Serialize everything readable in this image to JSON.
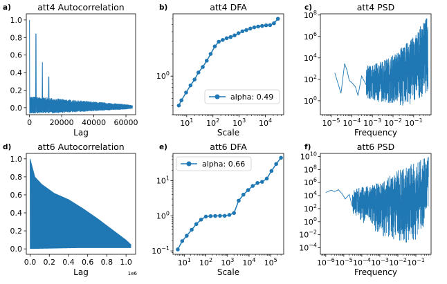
{
  "chart_data": [
    {
      "id": "a",
      "type": "line",
      "panel_letter": "a)",
      "title": "att4 Autocorrelation",
      "xlabel": "Lag",
      "ylabel": "",
      "xlim": [
        -2000,
        66000
      ],
      "ylim": [
        -0.08,
        1.07
      ],
      "xticks": [
        0,
        20000,
        40000,
        60000
      ],
      "xtick_labels": [
        "0",
        "20000",
        "40000",
        "60000"
      ],
      "yticks": [
        0.0,
        0.2,
        0.4,
        0.6,
        0.8,
        1.0
      ],
      "ytick_labels": [
        "0.0",
        "0.2",
        "0.4",
        "0.6",
        "0.8",
        "1.0"
      ],
      "series": [
        {
          "color": "#1f77b4",
          "peak_lags": [
            0,
            4000,
            8000,
            12000
          ],
          "peak_values": [
            1.0,
            0.84,
            0.52,
            0.35
          ],
          "envelope_upper": [
            [
              0,
              0.13
            ],
            [
              10000,
              0.12
            ],
            [
              20000,
              0.1
            ],
            [
              40000,
              0.07
            ],
            [
              60000,
              0.04
            ],
            [
              64000,
              0.03
            ]
          ],
          "envelope_lower": [
            [
              0,
              -0.07
            ],
            [
              20000,
              -0.06
            ],
            [
              40000,
              -0.04
            ],
            [
              60000,
              -0.02
            ],
            [
              64000,
              -0.01
            ]
          ]
        }
      ]
    },
    {
      "id": "b",
      "type": "line",
      "panel_letter": "b)",
      "title": "att4 DFA",
      "xlabel": "Scale",
      "ylabel": "",
      "xscale": "log",
      "yscale": "log",
      "xlim": [
        3,
        50000
      ],
      "ylim": [
        0.3,
        7
      ],
      "xtick_labels": [
        "10^1",
        "10^2",
        "10^3",
        "10^4"
      ],
      "ytick_labels": [
        "10^0"
      ],
      "legend": {
        "label": "alpha: 0.49",
        "loc": "lower right"
      },
      "series": [
        {
          "name": "alpha: 0.49",
          "color": "#1f77b4",
          "x": [
            5,
            6.3,
            9.5,
            14,
            20,
            28,
            41,
            58,
            82,
            118,
            167,
            236,
            334,
            472,
            667,
            943,
            1334,
            1886,
            2667,
            3771,
            5333,
            7542,
            10665,
            15082,
            21328,
            30163
          ],
          "y": [
            0.4,
            0.47,
            0.6,
            0.75,
            0.9,
            1.12,
            1.33,
            1.62,
            2.0,
            2.53,
            2.93,
            3.1,
            3.27,
            3.39,
            3.57,
            3.82,
            4.06,
            4.22,
            4.42,
            4.59,
            4.71,
            4.8,
            4.89,
            4.92,
            5.22,
            6.0
          ]
        }
      ]
    },
    {
      "id": "c",
      "type": "line",
      "panel_letter": "c)",
      "title": "att4 PSD",
      "xlabel": "Frequency",
      "ylabel": "",
      "xscale": "log",
      "yscale": "log",
      "xlim": [
        3e-06,
        0.7
      ],
      "ylim": [
        0.05,
        130000000.0
      ],
      "xtick_labels": [
        "10^-5",
        "10^-4",
        "10^-3",
        "10^-2",
        "10^-1"
      ],
      "ytick_labels": [
        "10^0",
        "10^2",
        "10^4",
        "10^6",
        "10^8"
      ],
      "series": [
        {
          "color": "#1f77b4",
          "x": [
            1.5e-05,
            3e-05,
            4.5e-05,
            6e-05,
            7.5e-05,
            0.0001,
            0.00015,
            0.0002,
            0.0003,
            0.0005
          ],
          "y": [
            400,
            5,
            3000,
            600,
            80,
            50,
            20,
            3,
            200,
            30
          ],
          "noise_band": {
            "low": [
              [
                0.001,
                1
              ],
              [
                0.05,
                0.3
              ],
              [
                0.5,
                5
              ]
            ],
            "high": [
              [
                0.001,
                2000
              ],
              [
                0.01,
                20000
              ],
              [
                0.1,
                1000000
              ],
              [
                0.5,
                100000000
              ]
            ]
          }
        }
      ]
    },
    {
      "id": "d",
      "type": "line",
      "panel_letter": "d)",
      "title": "att6 Autocorrelation",
      "xlabel": "Lag",
      "ylabel": "",
      "xlim": [
        -0.04,
        1.1
      ],
      "ylim": [
        -0.06,
        1.06
      ],
      "x_offset_label": "1e6",
      "xticks": [
        0.0,
        0.2,
        0.4,
        0.6,
        0.8,
        1.0
      ],
      "xtick_labels": [
        "0.0",
        "0.2",
        "0.4",
        "0.6",
        "0.8",
        "1.0"
      ],
      "yticks": [
        0.0,
        0.2,
        0.4,
        0.6,
        0.8,
        1.0
      ],
      "ytick_labels": [
        "0.0",
        "0.2",
        "0.4",
        "0.6",
        "0.8",
        "1.0"
      ],
      "series": [
        {
          "color": "#1f77b4",
          "envelope_upper": [
            [
              0.0,
              1.0
            ],
            [
              0.05,
              0.8
            ],
            [
              0.12,
              0.72
            ],
            [
              0.25,
              0.62
            ],
            [
              0.4,
              0.55
            ],
            [
              0.55,
              0.45
            ],
            [
              0.7,
              0.34
            ],
            [
              0.85,
              0.22
            ],
            [
              1.0,
              0.1
            ],
            [
              1.05,
              0.05
            ]
          ],
          "envelope_lower": [
            [
              0.0,
              0.0
            ],
            [
              0.5,
              0.01
            ],
            [
              1.05,
              0.01
            ]
          ]
        }
      ]
    },
    {
      "id": "e",
      "type": "line",
      "panel_letter": "e)",
      "title": "att6 DFA",
      "xlabel": "Scale",
      "ylabel": "",
      "xscale": "log",
      "yscale": "log",
      "xlim": [
        3,
        400000
      ],
      "ylim": [
        0.08,
        60
      ],
      "xtick_labels": [
        "10^1",
        "10^2",
        "10^3",
        "10^4",
        "10^5"
      ],
      "ytick_labels": [
        "10^-1",
        "10^0",
        "10^1"
      ],
      "legend": {
        "label": "alpha: 0.66",
        "loc": "upper left"
      },
      "series": [
        {
          "name": "alpha: 0.66",
          "color": "#1f77b4",
          "x": [
            5,
            8,
            13,
            22,
            36,
            60,
            100,
            165,
            270,
            450,
            740,
            1220,
            2000,
            3300,
            5450,
            9000,
            14800,
            24400,
            40000,
            66000,
            109000,
            180000,
            300000
          ],
          "y": [
            0.11,
            0.19,
            0.27,
            0.4,
            0.58,
            0.78,
            0.95,
            0.98,
            0.99,
            1.0,
            1.0,
            1.06,
            1.2,
            2.7,
            4.0,
            5.4,
            7.1,
            8.6,
            9.3,
            11.5,
            19,
            30,
            45
          ]
        }
      ]
    },
    {
      "id": "f",
      "type": "line",
      "panel_letter": "f)",
      "title": "att6 PSD",
      "xlabel": "Frequency",
      "ylabel": "",
      "xscale": "log",
      "yscale": "log",
      "xlim": [
        5e-07,
        0.7
      ],
      "ylim": [
        1e-05,
        30000000000.0
      ],
      "xtick_labels": [
        "10^-6",
        "10^-5",
        "10^-4",
        "10^-3",
        "10^-2",
        "10^-1"
      ],
      "ytick_labels": [
        "10^-4",
        "10^-2",
        "10^0",
        "10^2",
        "10^4",
        "10^6",
        "10^8",
        "10^10"
      ],
      "series": [
        {
          "color": "#1f77b4",
          "x": [
            1e-06,
            2e-06,
            3e-06,
            5e-06,
            8e-06,
            1.2e-05,
            2e-05,
            3e-05
          ],
          "y": [
            30000,
            70000,
            40000,
            80000,
            20000,
            3000,
            15000,
            200
          ],
          "noise_band": {
            "low": [
              [
                1e-05,
                100
              ],
              [
                0.001,
                0.01
              ],
              [
                0.05,
                0.0001
              ],
              [
                0.5,
                1
              ]
            ],
            "high": [
              [
                1e-05,
                50000
              ],
              [
                0.001,
                1000000
              ],
              [
                0.01,
                100000000
              ],
              [
                0.5,
                10000000000
              ]
            ]
          }
        }
      ]
    }
  ]
}
